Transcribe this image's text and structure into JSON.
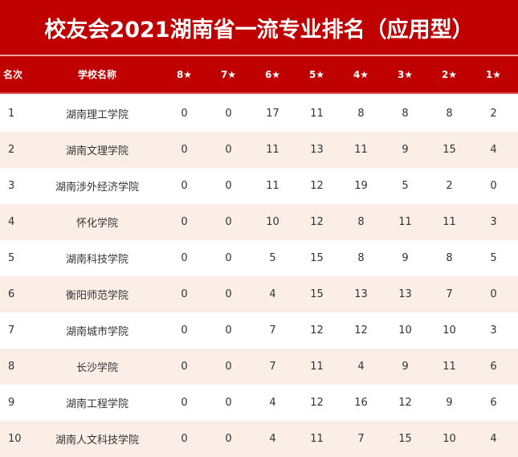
{
  "title": "校友会2021湖南省一流专业排名（应用型）",
  "headers": [
    "名次",
    "学校名称",
    "8★",
    "7★",
    "6★",
    "5★",
    "4★",
    "3★",
    "2★",
    "1★"
  ],
  "rows": [
    [
      "1",
      "湖南理工学院",
      "0",
      "0",
      "17",
      "11",
      "8",
      "8",
      "8",
      "2"
    ],
    [
      "2",
      "湖南文理学院",
      "0",
      "0",
      "11",
      "13",
      "11",
      "9",
      "15",
      "4"
    ],
    [
      "3",
      "湖南涉外经济学院",
      "0",
      "0",
      "11",
      "12",
      "19",
      "5",
      "2",
      "0"
    ],
    [
      "4",
      "怀化学院",
      "0",
      "0",
      "10",
      "12",
      "8",
      "11",
      "11",
      "3"
    ],
    [
      "5",
      "湖南科技学院",
      "0",
      "0",
      "5",
      "15",
      "8",
      "9",
      "8",
      "5"
    ],
    [
      "6",
      "衡阳师范学院",
      "0",
      "0",
      "4",
      "15",
      "13",
      "13",
      "7",
      "0"
    ],
    [
      "7",
      "湖南城市学院",
      "0",
      "0",
      "7",
      "12",
      "12",
      "10",
      "10",
      "3"
    ],
    [
      "8",
      "长沙学院",
      "0",
      "0",
      "7",
      "11",
      "4",
      "9",
      "11",
      "6"
    ],
    [
      "9",
      "湖南工程学院",
      "0",
      "0",
      "4",
      "12",
      "16",
      "12",
      "9",
      "6"
    ],
    [
      "10",
      "湖南人文科技学院",
      "0",
      "0",
      "4",
      "11",
      "7",
      "15",
      "10",
      "4"
    ]
  ],
  "colors": {
    "header_red": "#c00000",
    "alt_row": "#fbeee6"
  }
}
